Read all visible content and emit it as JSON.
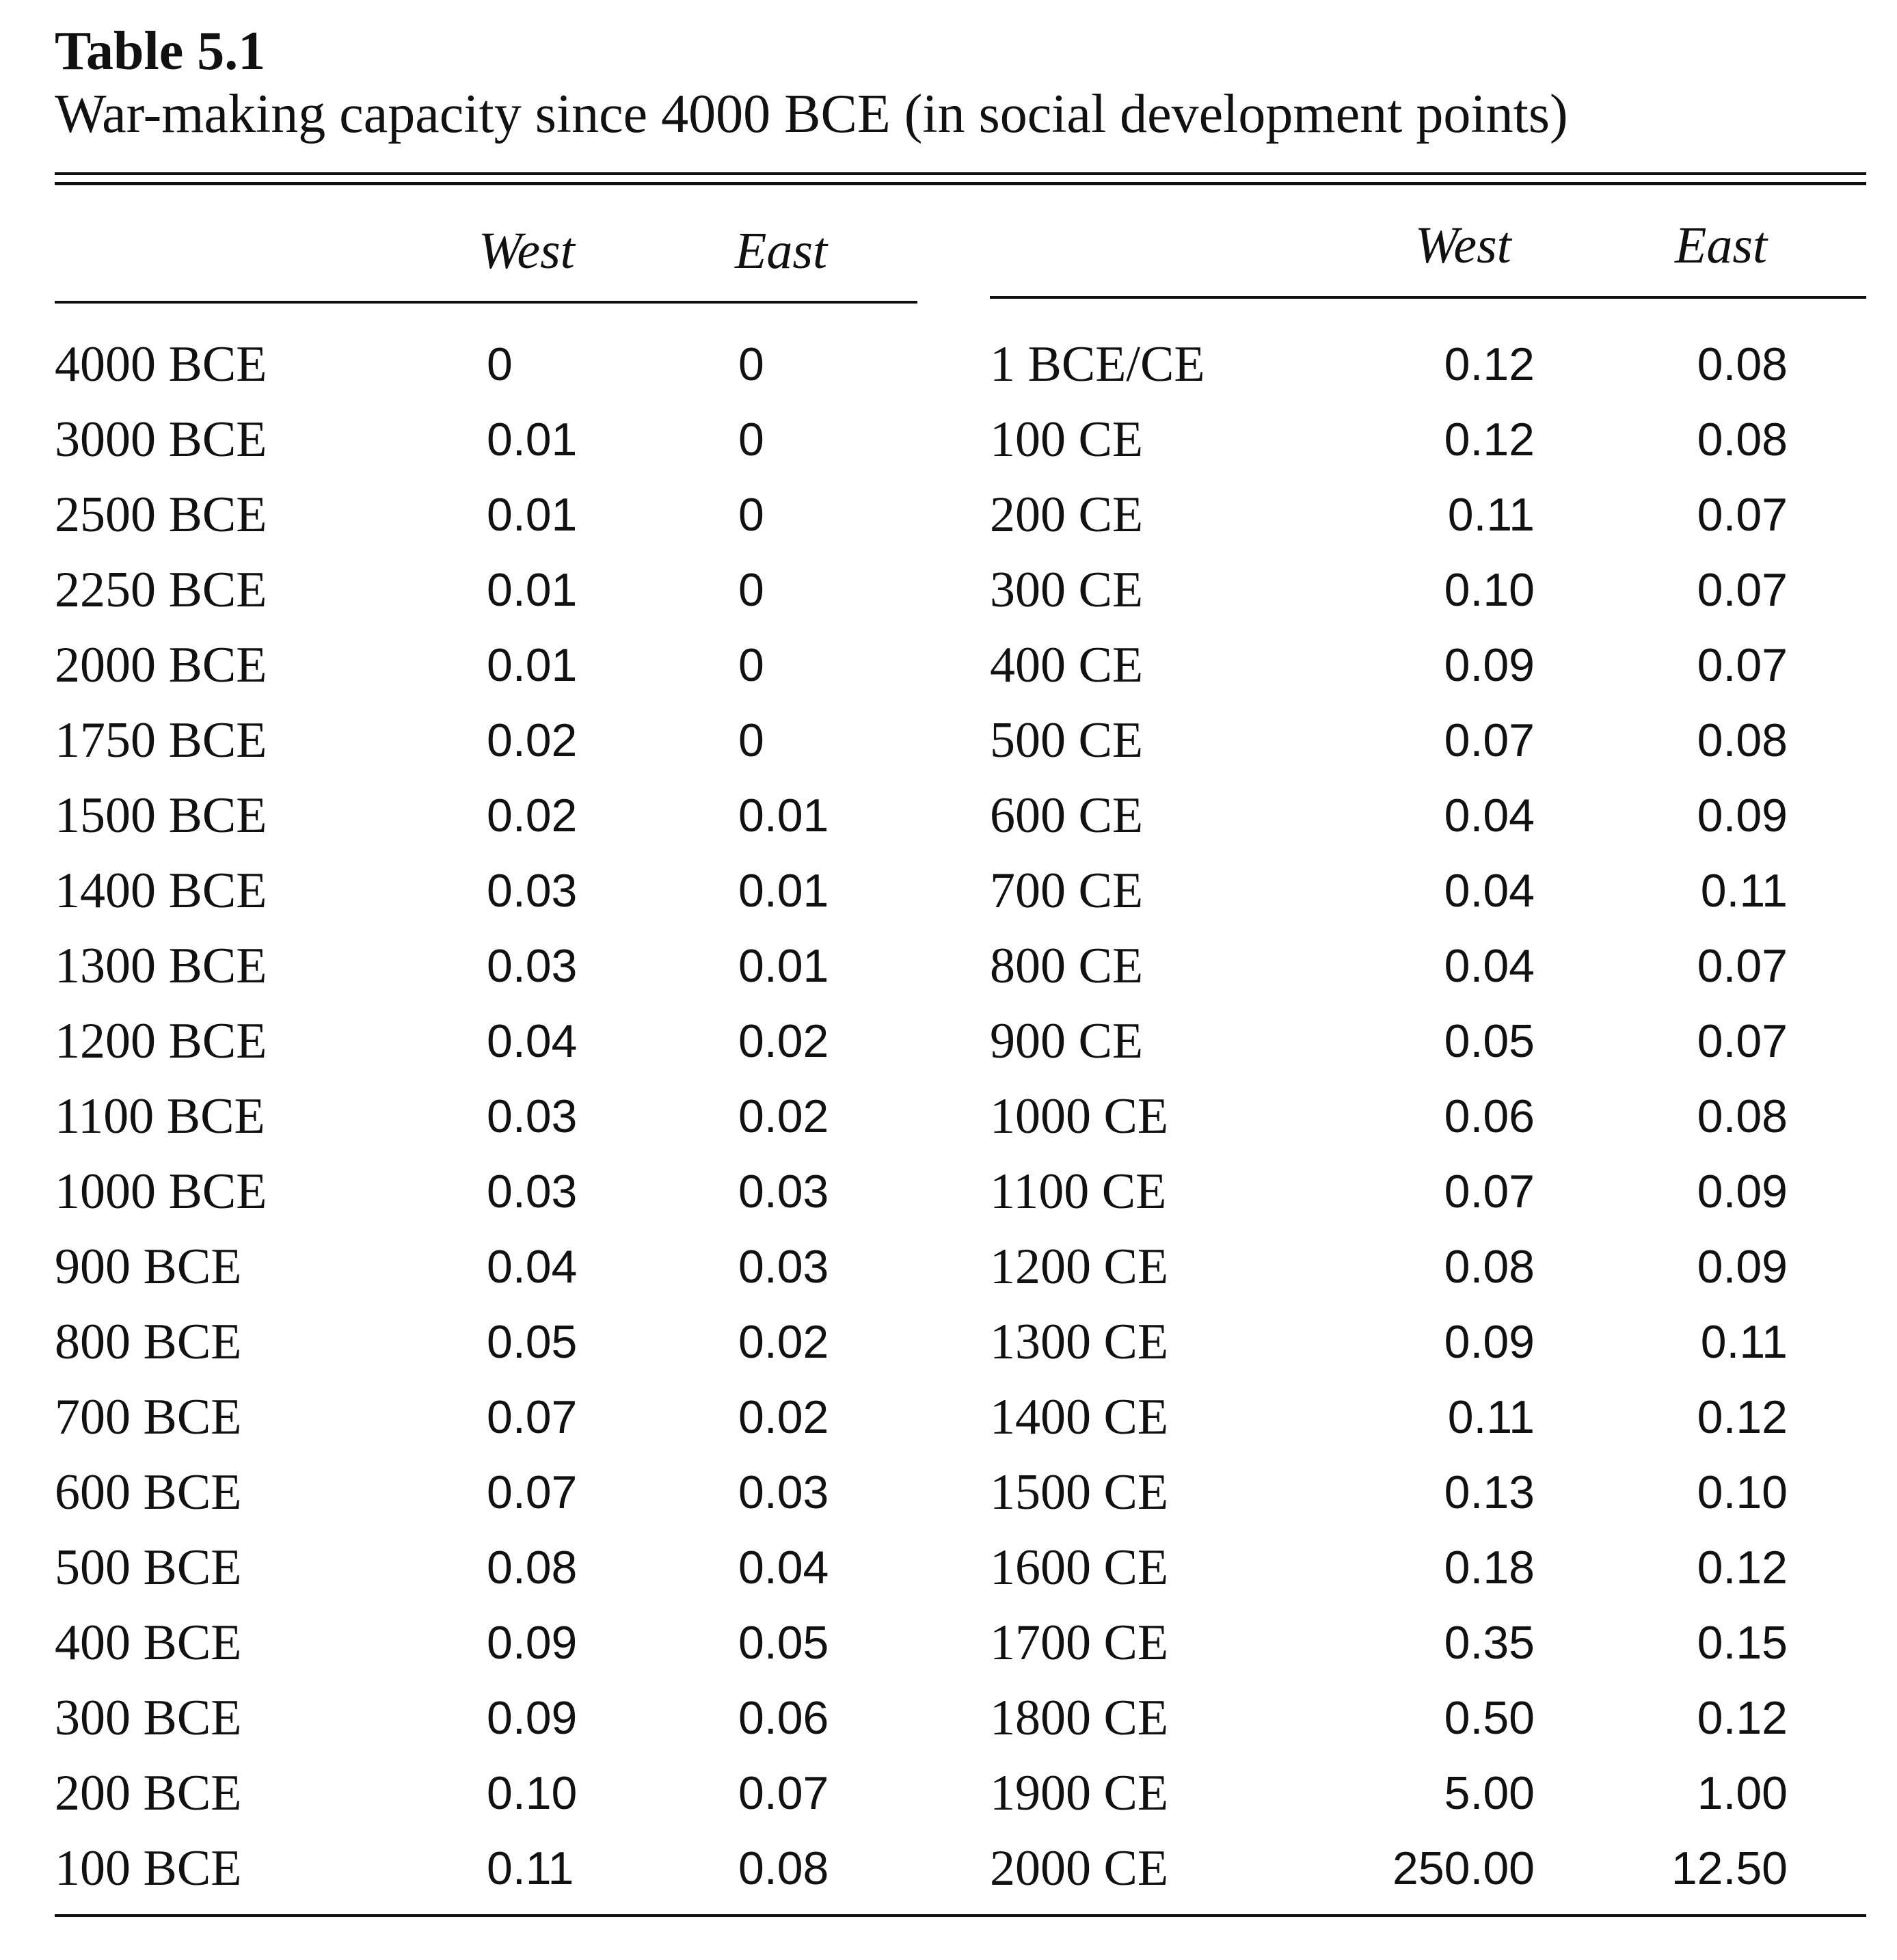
{
  "table": {
    "label": "Table 5.1",
    "caption": "War-making capacity since 4000 BCE (in social development points)",
    "headers": {
      "left": {
        "west": "West",
        "east": "East"
      },
      "right": {
        "west": "West",
        "east": "East"
      }
    },
    "left_rows": [
      {
        "period": "4000 BCE",
        "west": "0",
        "east": "0"
      },
      {
        "period": "3000 BCE",
        "west": "0.01",
        "east": "0"
      },
      {
        "period": "2500 BCE",
        "west": "0.01",
        "east": "0"
      },
      {
        "period": "2250 BCE",
        "west": "0.01",
        "east": "0"
      },
      {
        "period": "2000 BCE",
        "west": "0.01",
        "east": "0"
      },
      {
        "period": "1750 BCE",
        "west": "0.02",
        "east": "0"
      },
      {
        "period": "1500 BCE",
        "west": "0.02",
        "east": "0.01"
      },
      {
        "period": "1400 BCE",
        "west": "0.03",
        "east": "0.01"
      },
      {
        "period": "1300 BCE",
        "west": "0.03",
        "east": "0.01"
      },
      {
        "period": "1200 BCE",
        "west": "0.04",
        "east": "0.02"
      },
      {
        "period": "1100 BCE",
        "west": "0.03",
        "east": "0.02"
      },
      {
        "period": "1000 BCE",
        "west": "0.03",
        "east": "0.03"
      },
      {
        "period": "900 BCE",
        "west": "0.04",
        "east": "0.03"
      },
      {
        "period": "800 BCE",
        "west": "0.05",
        "east": "0.02"
      },
      {
        "period": "700 BCE",
        "west": "0.07",
        "east": "0.02"
      },
      {
        "period": "600 BCE",
        "west": "0.07",
        "east": "0.03"
      },
      {
        "period": "500 BCE",
        "west": "0.08",
        "east": "0.04"
      },
      {
        "period": "400 BCE",
        "west": "0.09",
        "east": "0.05"
      },
      {
        "period": "300 BCE",
        "west": "0.09",
        "east": "0.06"
      },
      {
        "period": "200 BCE",
        "west": "0.10",
        "east": "0.07"
      },
      {
        "period": "100 BCE",
        "west": "0.11",
        "east": "0.08"
      }
    ],
    "right_rows": [
      {
        "period": "1 BCE/CE",
        "west": "0.12",
        "east": "0.08"
      },
      {
        "period": "100 CE",
        "west": "0.12",
        "east": "0.08"
      },
      {
        "period": "200 CE",
        "west": "0.11",
        "east": "0.07"
      },
      {
        "period": "300 CE",
        "west": "0.10",
        "east": "0.07"
      },
      {
        "period": "400 CE",
        "west": "0.09",
        "east": "0.07"
      },
      {
        "period": "500 CE",
        "west": "0.07",
        "east": "0.08"
      },
      {
        "period": "600 CE",
        "west": "0.04",
        "east": "0.09"
      },
      {
        "period": "700 CE",
        "west": "0.04",
        "east": "0.11"
      },
      {
        "period": "800 CE",
        "west": "0.04",
        "east": "0.07"
      },
      {
        "period": "900 CE",
        "west": "0.05",
        "east": "0.07"
      },
      {
        "period": "1000 CE",
        "west": "0.06",
        "east": "0.08"
      },
      {
        "period": "1100 CE",
        "west": "0.07",
        "east": "0.09"
      },
      {
        "period": "1200 CE",
        "west": "0.08",
        "east": "0.09"
      },
      {
        "period": "1300 CE",
        "west": "0.09",
        "east": "0.11"
      },
      {
        "period": "1400 CE",
        "west": "0.11",
        "east": "0.12"
      },
      {
        "period": "1500 CE",
        "west": "0.13",
        "east": "0.10"
      },
      {
        "period": "1600 CE",
        "west": "0.18",
        "east": "0.12"
      },
      {
        "period": "1700 CE",
        "west": "0.35",
        "east": "0.15"
      },
      {
        "period": "1800 CE",
        "west": "0.50",
        "east": "0.12"
      },
      {
        "period": "1900 CE",
        "west": "5.00",
        "east": "1.00"
      },
      {
        "period": "2000 CE",
        "west": "250.00",
        "east": "12.50"
      }
    ]
  }
}
